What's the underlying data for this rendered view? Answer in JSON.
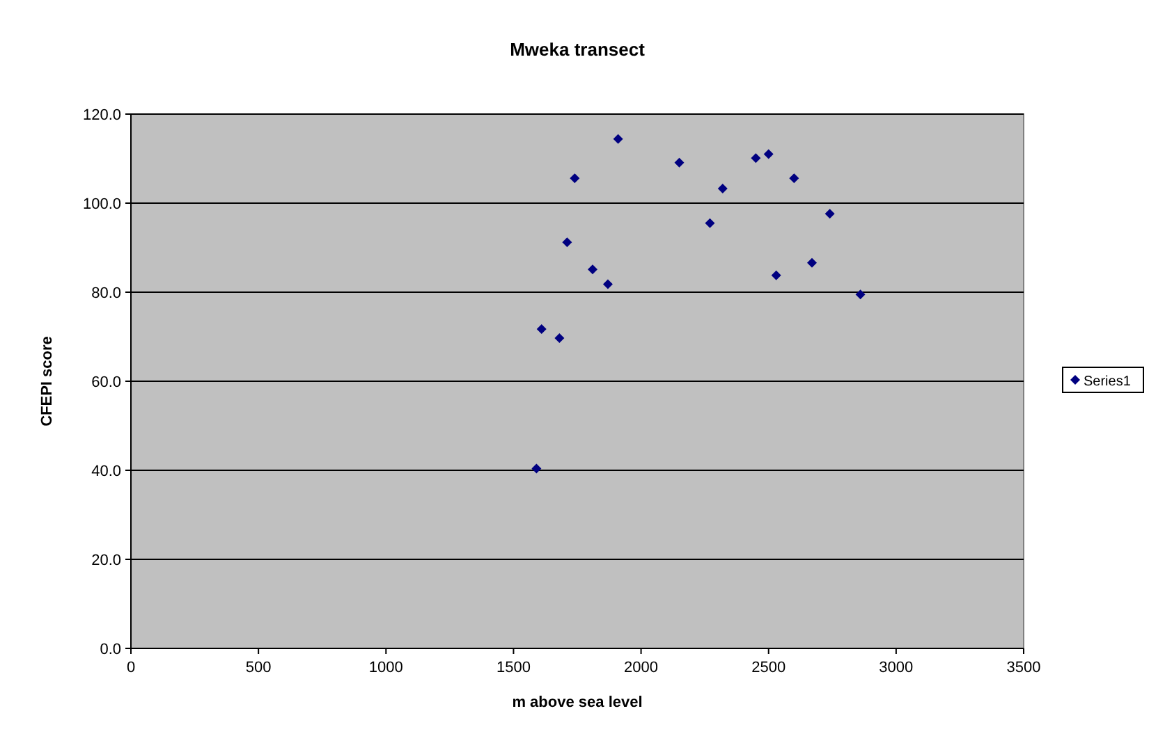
{
  "chart_data": {
    "type": "scatter",
    "title": "Mweka transect",
    "xlabel": "m above sea level",
    "ylabel": "CFEPI score",
    "x": [
      1590,
      1610,
      1680,
      1710,
      1740,
      1810,
      1870,
      1910,
      2150,
      2270,
      2320,
      2450,
      2500,
      2530,
      2600,
      2670,
      2740,
      2860
    ],
    "series": [
      {
        "name": "Series1",
        "color": "#000080",
        "values": [
          40.4,
          71.7,
          69.7,
          91.2,
          105.6,
          85.1,
          81.8,
          114.4,
          109.1,
          95.5,
          103.3,
          110.1,
          111.0,
          83.8,
          105.6,
          86.6,
          97.6,
          79.5
        ]
      }
    ],
    "xlim": [
      0,
      3500
    ],
    "xticks": [
      0,
      500,
      1000,
      1500,
      2000,
      2500,
      3000,
      3500
    ],
    "ylim": [
      0,
      120
    ],
    "yticks": [
      {
        "value": 0,
        "label": "0.0"
      },
      {
        "value": 20,
        "label": "20.0"
      },
      {
        "value": 40,
        "label": "40.0"
      },
      {
        "value": 60,
        "label": "60.0"
      },
      {
        "value": 80,
        "label": "80.0"
      },
      {
        "value": 100,
        "label": "100.0"
      },
      {
        "value": 120,
        "label": "120.0"
      }
    ],
    "grid": "y",
    "legend": "right",
    "marker": "diamond"
  }
}
